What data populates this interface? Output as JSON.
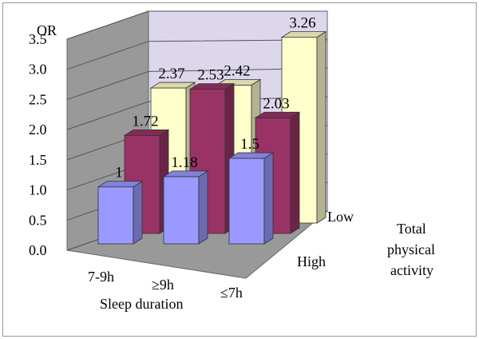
{
  "chart_data": {
    "type": "bar",
    "style": "3d-clustered-columns",
    "y_axis_title": "OR",
    "y_ticks": [
      "0.0",
      "0.5",
      "1.0",
      "1.5",
      "2.0",
      "2.5",
      "3.0",
      "3.5"
    ],
    "ylim": [
      0,
      3.5
    ],
    "grid": true,
    "categories": [
      "7-9h",
      "≥9h",
      "≤7h"
    ],
    "x_axis_title": "Sleep duration",
    "depth_axis_title": [
      "Total",
      "physical",
      "activity"
    ],
    "series": [
      {
        "name": "High",
        "values": [
          1,
          1.18,
          1.5
        ],
        "labels": [
          "1",
          "1.18",
          "1.5"
        ],
        "color": "#9999ff"
      },
      {
        "name": "",
        "values": [
          1.72,
          2.53,
          2.03
        ],
        "labels": [
          "1.72",
          "2.53",
          "2.03"
        ],
        "color": "#993366"
      },
      {
        "name": "Low",
        "values": [
          2.37,
          2.42,
          3.26
        ],
        "labels": [
          "2.37",
          "2.42",
          "3.26"
        ],
        "color": "#ffffcc"
      }
    ]
  }
}
